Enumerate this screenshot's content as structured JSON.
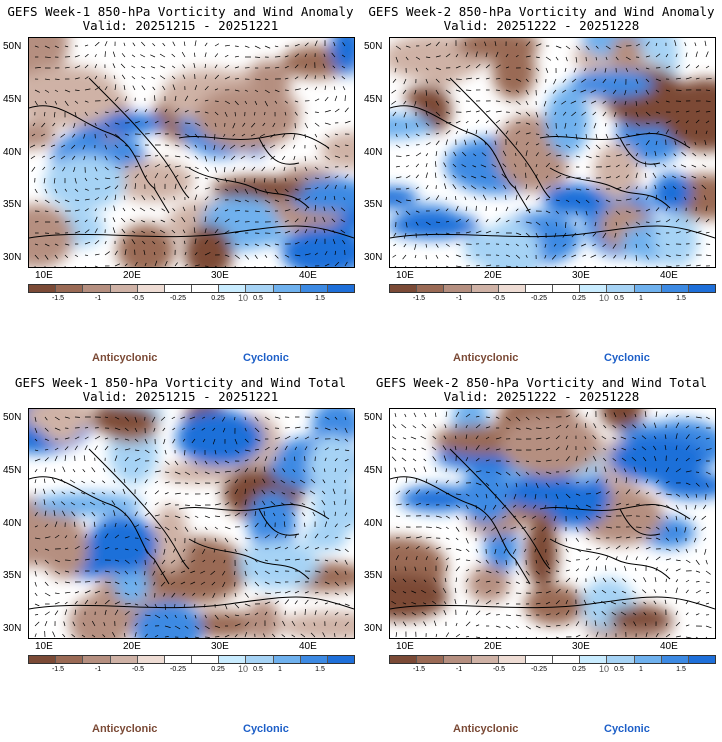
{
  "panels": [
    {
      "title1": "GEFS Week-1 850-hPa Vorticity and Wind Anomaly",
      "title2": "Valid: 20251215 - 20251221",
      "seed": 1
    },
    {
      "title1": "GEFS Week-2 850-hPa Vorticity and Wind Anomaly",
      "title2": "Valid: 20251222 - 20251228",
      "seed": 2
    },
    {
      "title1": "GEFS Week-1 850-hPa Vorticity and Wind Total",
      "title2": "Valid: 20251215 - 20251221",
      "seed": 3
    },
    {
      "title1": "GEFS Week-2 850-hPa Vorticity and Wind Total",
      "title2": "Valid: 20251222 - 20251228",
      "seed": 4
    }
  ],
  "lat_labels": [
    "50N",
    "45N",
    "40N",
    "35N",
    "30N"
  ],
  "lon_labels": [
    "10E",
    "20E",
    "30E",
    "40E"
  ],
  "colorbar": {
    "colors": [
      "#7b4a36",
      "#9a6a55",
      "#b58f80",
      "#cfb2a6",
      "#eedcd4",
      "#ffffff",
      "#ffffff",
      "#c9ecff",
      "#a6d3f5",
      "#6fb1ee",
      "#3d8ae3",
      "#1e6fd9"
    ],
    "ticks": [
      "-1.5",
      "-1",
      "-0.5",
      "-0.25",
      "0.25",
      "0.5",
      "1",
      "1.5"
    ],
    "scale_label": "10"
  },
  "legend": {
    "anticyclonic": "Anticyclonic",
    "cyclonic": "Cyclonic"
  }
}
